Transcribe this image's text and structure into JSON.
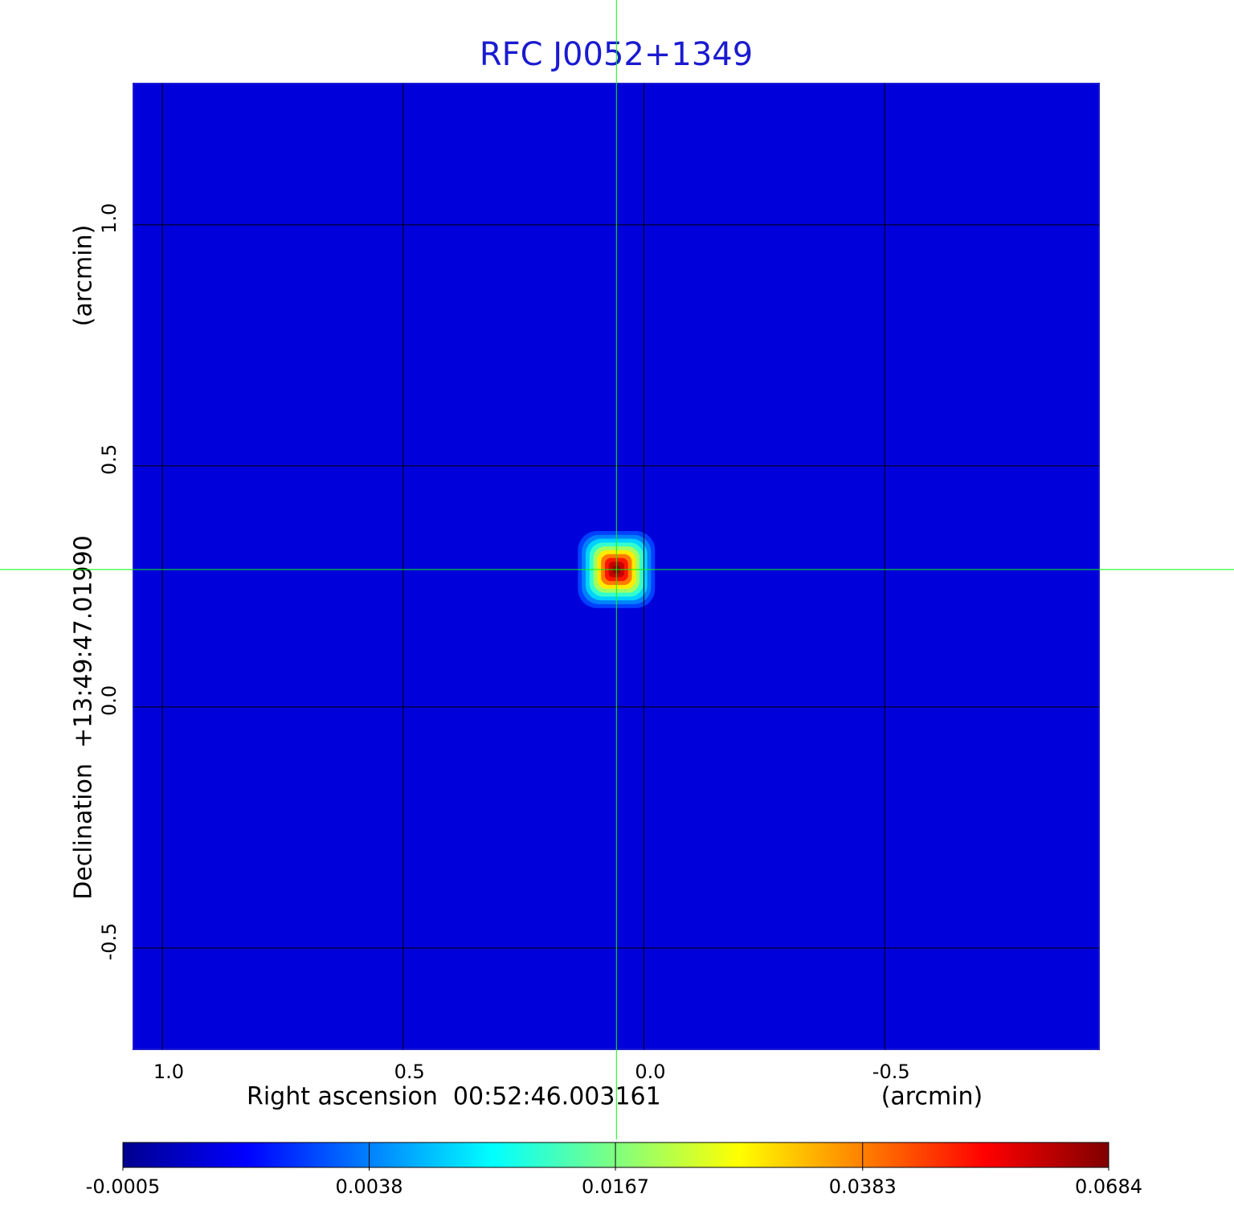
{
  "chart_data": {
    "type": "image",
    "title": "RFC J0052+1349",
    "xlabel": "Right ascension  00:52:46.003161",
    "xunit": "(arcmin)",
    "ylabel": "Declination  +13:49:47.01990",
    "yunit": "(arcmin)",
    "xlim": [
      1.06,
      -0.945
    ],
    "ylim": [
      -0.71,
      1.293
    ],
    "xticks": [
      {
        "value": 1,
        "label": "1.0"
      },
      0.5,
      {
        "value": 0,
        "label": "0.0"
      },
      -0.5
    ],
    "yticks": [
      {
        "value": 1,
        "label": "1.0"
      },
      0.5,
      {
        "value": 0,
        "label": "0.0"
      },
      -0.5
    ],
    "grid": true,
    "background": 0,
    "source": {
      "x": 0.057,
      "y": 0.285,
      "peak": 0.0684,
      "size": 0.05
    },
    "crosshair": {
      "x": 0.057,
      "y": 0.285,
      "color": "#00ff00"
    },
    "colorbar": {
      "scale": "sqrt",
      "lim": [
        -0.0005,
        0.0684
      ],
      "ticks": [
        -0.0005,
        0.0038,
        0.0167,
        0.0383,
        0.0684
      ]
    },
    "colormap": [
      "#00008f",
      "#0000ff",
      "#0080ff",
      "#00ffff",
      "#80ff80",
      "#ffff00",
      "#ff8000",
      "#ff0000",
      "#800000"
    ]
  }
}
